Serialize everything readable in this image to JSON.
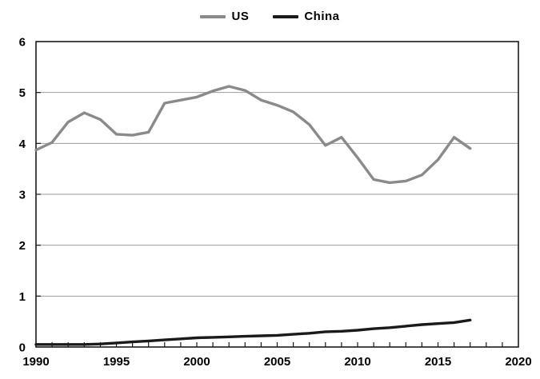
{
  "chart_data": {
    "type": "line",
    "title": "",
    "xlabel": "",
    "ylabel": "",
    "xlim": [
      1990,
      2020
    ],
    "ylim": [
      0,
      6
    ],
    "xticks": [
      1990,
      1995,
      2000,
      2005,
      2010,
      2015,
      2020
    ],
    "yticks": [
      0,
      1,
      2,
      3,
      4,
      5,
      6
    ],
    "grid": "horizontal",
    "legend_position": "top",
    "x": [
      1990,
      1991,
      1992,
      1993,
      1994,
      1995,
      1996,
      1997,
      1998,
      1999,
      2000,
      2001,
      2002,
      2003,
      2004,
      2005,
      2006,
      2007,
      2008,
      2009,
      2010,
      2011,
      2012,
      2013,
      2014,
      2015,
      2016,
      2017
    ],
    "series": [
      {
        "name": "US",
        "color": "#8a8a8a",
        "values": [
          3.87,
          4.02,
          4.42,
          4.6,
          4.47,
          4.18,
          4.16,
          4.22,
          4.79,
          4.85,
          4.91,
          5.03,
          5.12,
          5.04,
          4.85,
          4.75,
          4.62,
          4.37,
          3.96,
          4.12,
          3.72,
          3.29,
          3.23,
          3.26,
          3.38,
          3.68,
          4.12,
          3.9
        ]
      },
      {
        "name": "China",
        "color": "#1a1a1a",
        "values": [
          0.05,
          0.05,
          0.05,
          0.05,
          0.06,
          0.08,
          0.1,
          0.12,
          0.14,
          0.16,
          0.18,
          0.19,
          0.2,
          0.21,
          0.22,
          0.23,
          0.25,
          0.27,
          0.3,
          0.31,
          0.33,
          0.36,
          0.38,
          0.41,
          0.44,
          0.46,
          0.48,
          0.53
        ]
      }
    ]
  }
}
